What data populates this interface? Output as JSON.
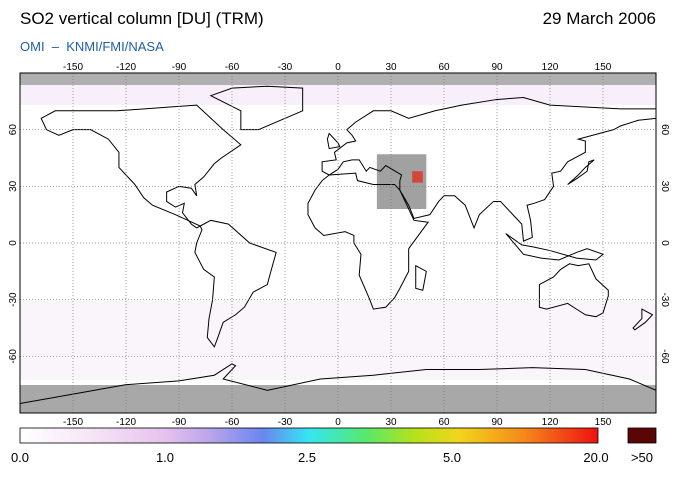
{
  "header": {
    "title": "SO2 vertical column [DU] (TRM)",
    "date": "29 March 2006",
    "subtitle": "OMI  –  KNMI/FMI/NASA"
  },
  "map": {
    "lon_ticks": [
      "-150",
      "-120",
      "-90",
      "-60",
      "-30",
      "0",
      "30",
      "60",
      "90",
      "120",
      "150"
    ],
    "lat_ticks": [
      "60",
      "30",
      "0",
      "-30",
      "-60"
    ]
  },
  "colorbar": {
    "labels": [
      "0.0",
      "1.0",
      "2.5",
      "5.0",
      "20.0",
      ">50"
    ]
  }
}
